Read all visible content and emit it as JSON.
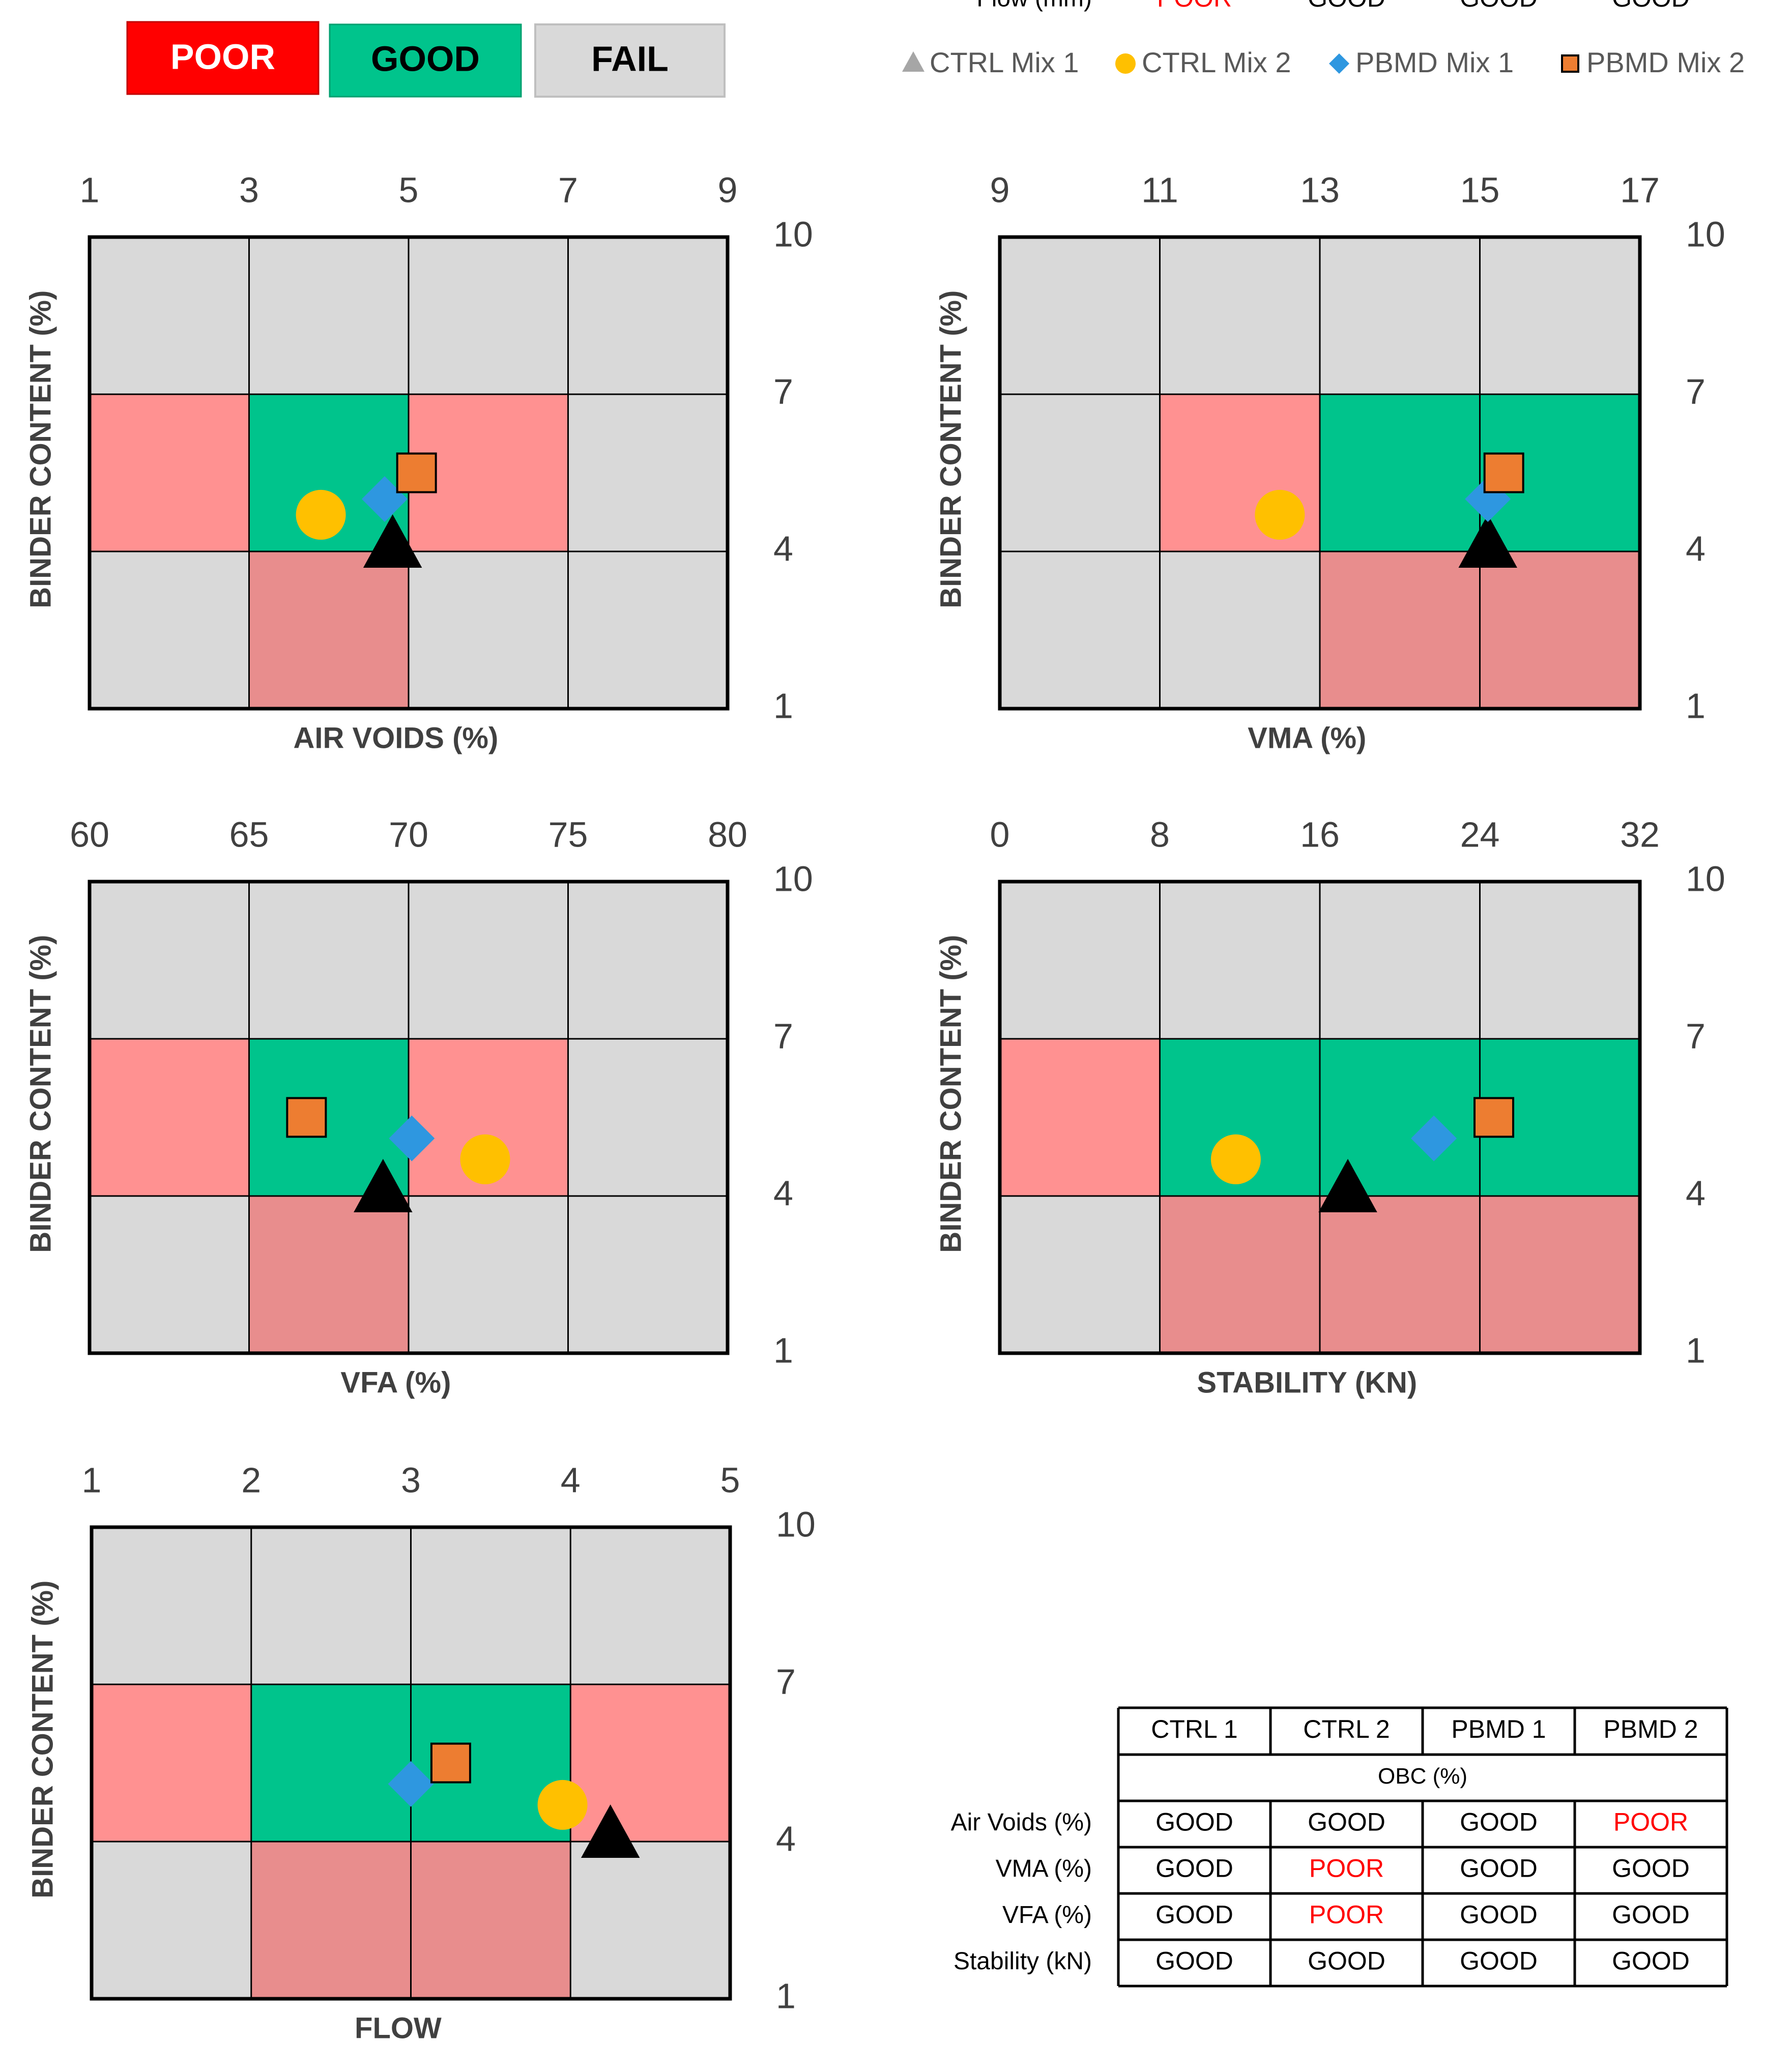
{
  "status_badges": {
    "poor": {
      "label": "POOR",
      "fill": "#ff0000",
      "text_color": "#ffffff"
    },
    "good": {
      "label": "GOOD",
      "fill": "#00c48c",
      "text_color": "#000000"
    },
    "fail": {
      "label": "FAIL",
      "fill": "#d9d9d9",
      "text_color": "#000000"
    }
  },
  "zone_colors": {
    "FAIL": "#d9d9d9",
    "GOOD": "#00c48c",
    "POOR": "#ff9191",
    "POOR_LOW": "#e88d8d"
  },
  "legend": [
    {
      "name": "CTRL Mix 1",
      "marker": "triangle",
      "color": "#a6a6a6"
    },
    {
      "name": "CTRL Mix 2",
      "marker": "circle",
      "color": "#ffc000"
    },
    {
      "name": "PBMD Mix 1",
      "marker": "diamond",
      "color": "#2e97e0"
    },
    {
      "name": "PBMD Mix 2",
      "marker": "square",
      "color": "#ed7d31"
    }
  ],
  "series_styles": [
    {
      "name": "CTRL Mix 1",
      "marker": "triangle",
      "color": "#000000"
    },
    {
      "name": "CTRL Mix 2",
      "marker": "circle",
      "color": "#ffc000"
    },
    {
      "name": "PBMD Mix 1",
      "marker": "diamond",
      "color": "#2e97e0"
    },
    {
      "name": "PBMD Mix 2",
      "marker": "square",
      "color": "#ed7d31"
    }
  ],
  "chart_data": [
    {
      "type": "scatter",
      "title": "",
      "xlabel": "AIR VOIDS (%)",
      "ylabel": "BINDER CONTENT (%)",
      "xlim": [
        1,
        9
      ],
      "ylim": [
        1,
        10
      ],
      "x_ticks": [
        1,
        3,
        5,
        7,
        9
      ],
      "y_ticks": [
        10,
        7,
        4,
        1
      ],
      "x_tick_labels": [
        "1",
        "3",
        "5",
        "7",
        "9"
      ],
      "y_tick_labels": [
        "10",
        "7",
        "4",
        "1"
      ],
      "zones": [
        [
          "FAIL",
          "FAIL",
          "FAIL",
          "FAIL"
        ],
        [
          "POOR",
          "GOOD",
          "POOR",
          "FAIL"
        ],
        [
          "FAIL",
          "POOR_LOW",
          "FAIL",
          "FAIL"
        ]
      ],
      "series": [
        {
          "name": "CTRL Mix 1",
          "x": 4.8,
          "y": 4.0
        },
        {
          "name": "CTRL Mix 2",
          "x": 3.9,
          "y": 4.7
        },
        {
          "name": "PBMD Mix 1",
          "x": 4.7,
          "y": 5.0
        },
        {
          "name": "PBMD Mix 2",
          "x": 5.1,
          "y": 5.5
        }
      ]
    },
    {
      "type": "scatter",
      "title": "",
      "xlabel": "VMA (%)",
      "ylabel": "BINDER CONTENT (%)",
      "xlim": [
        9,
        17
      ],
      "ylim": [
        1,
        10
      ],
      "x_ticks": [
        9,
        11,
        13,
        15,
        17
      ],
      "y_ticks": [
        10,
        7,
        4,
        1
      ],
      "x_tick_labels": [
        "9",
        "11",
        "13",
        "15",
        "17"
      ],
      "y_tick_labels": [
        "10",
        "7",
        "4",
        "1"
      ],
      "zones": [
        [
          "FAIL",
          "FAIL",
          "FAIL",
          "FAIL"
        ],
        [
          "FAIL",
          "POOR",
          "GOOD",
          "GOOD"
        ],
        [
          "FAIL",
          "FAIL",
          "POOR_LOW",
          "POOR_LOW"
        ]
      ],
      "series": [
        {
          "name": "CTRL Mix 1",
          "x": 15.1,
          "y": 4.0
        },
        {
          "name": "CTRL Mix 2",
          "x": 12.5,
          "y": 4.7
        },
        {
          "name": "PBMD Mix 1",
          "x": 15.1,
          "y": 5.0
        },
        {
          "name": "PBMD Mix 2",
          "x": 15.3,
          "y": 5.5
        }
      ]
    },
    {
      "type": "scatter",
      "title": "",
      "xlabel": "VFA (%)",
      "ylabel": "BINDER CONTENT (%)",
      "xlim": [
        60,
        80
      ],
      "ylim": [
        1,
        10
      ],
      "x_ticks": [
        60,
        65,
        70,
        75,
        80
      ],
      "y_ticks": [
        10,
        7,
        4,
        1
      ],
      "x_tick_labels": [
        "60",
        "65",
        "70",
        "75",
        "80"
      ],
      "y_tick_labels": [
        "10",
        "7",
        "4",
        "1"
      ],
      "zones": [
        [
          "FAIL",
          "FAIL",
          "FAIL",
          "FAIL"
        ],
        [
          "POOR",
          "GOOD",
          "POOR",
          "FAIL"
        ],
        [
          "FAIL",
          "POOR_LOW",
          "FAIL",
          "FAIL"
        ]
      ],
      "series": [
        {
          "name": "CTRL Mix 1",
          "x": 69.2,
          "y": 4.0
        },
        {
          "name": "CTRL Mix 2",
          "x": 72.4,
          "y": 4.7
        },
        {
          "name": "PBMD Mix 1",
          "x": 70.1,
          "y": 5.1
        },
        {
          "name": "PBMD Mix 2",
          "x": 66.8,
          "y": 5.5
        }
      ]
    },
    {
      "type": "scatter",
      "title": "",
      "xlabel": "STABILITY (KN)",
      "ylabel": "BINDER CONTENT (%)",
      "xlim": [
        0,
        32
      ],
      "ylim": [
        1,
        10
      ],
      "x_ticks": [
        0,
        8,
        16,
        24,
        32
      ],
      "y_ticks": [
        10,
        7,
        4,
        1
      ],
      "x_tick_labels": [
        "0",
        "8",
        "16",
        "24",
        "32"
      ],
      "y_tick_labels": [
        "10",
        "7",
        "4",
        "1"
      ],
      "zones": [
        [
          "FAIL",
          "FAIL",
          "FAIL",
          "FAIL"
        ],
        [
          "POOR",
          "GOOD",
          "GOOD",
          "GOOD"
        ],
        [
          "FAIL",
          "POOR_LOW",
          "POOR_LOW",
          "POOR_LOW"
        ]
      ],
      "series": [
        {
          "name": "CTRL Mix 1",
          "x": 17.4,
          "y": 4.0
        },
        {
          "name": "CTRL Mix 2",
          "x": 11.8,
          "y": 4.7
        },
        {
          "name": "PBMD Mix 1",
          "x": 21.7,
          "y": 5.1
        },
        {
          "name": "PBMD Mix 2",
          "x": 24.7,
          "y": 5.5
        }
      ]
    },
    {
      "type": "scatter",
      "title": "",
      "xlabel": "FLOW",
      "ylabel": "BINDER CONTENT (%)",
      "xlim": [
        1,
        5
      ],
      "ylim": [
        1,
        10
      ],
      "x_ticks": [
        1,
        2,
        3,
        4,
        5
      ],
      "y_ticks": [
        10,
        7,
        4,
        1
      ],
      "x_tick_labels": [
        "1",
        "2",
        "3",
        "4",
        "5"
      ],
      "y_tick_labels": [
        "10",
        "7",
        "4",
        "1"
      ],
      "zones": [
        [
          "FAIL",
          "FAIL",
          "FAIL",
          "FAIL"
        ],
        [
          "POOR",
          "GOOD",
          "GOOD",
          "POOR"
        ],
        [
          "FAIL",
          "POOR_LOW",
          "POOR_LOW",
          "FAIL"
        ]
      ],
      "series": [
        {
          "name": "CTRL Mix 1",
          "x": 4.25,
          "y": 4.0
        },
        {
          "name": "CTRL Mix 2",
          "x": 3.95,
          "y": 4.7
        },
        {
          "name": "PBMD Mix 1",
          "x": 3.0,
          "y": 5.1
        },
        {
          "name": "PBMD Mix 2",
          "x": 3.25,
          "y": 5.5
        }
      ]
    },
    {
      "type": "table",
      "columns": [
        "CTRL 1",
        "CTRL 2",
        "PBMD 1",
        "PBMD 2"
      ],
      "subheader": "OBC (%)",
      "rows": [
        {
          "label": "Air Voids (%)",
          "values": [
            "GOOD",
            "GOOD",
            "GOOD",
            "POOR"
          ]
        },
        {
          "label": "VMA (%)",
          "values": [
            "GOOD",
            "POOR",
            "GOOD",
            "GOOD"
          ]
        },
        {
          "label": "VFA (%)",
          "values": [
            "GOOD",
            "POOR",
            "GOOD",
            "GOOD"
          ]
        },
        {
          "label": "Stability (kN)",
          "values": [
            "GOOD",
            "GOOD",
            "GOOD",
            "GOOD"
          ]
        },
        {
          "label": "Flow (mm)",
          "values": [
            "POOR",
            "GOOD",
            "GOOD",
            "GOOD"
          ]
        }
      ],
      "status_colors": {
        "GOOD": "#000000",
        "POOR": "#ff0000"
      }
    }
  ]
}
